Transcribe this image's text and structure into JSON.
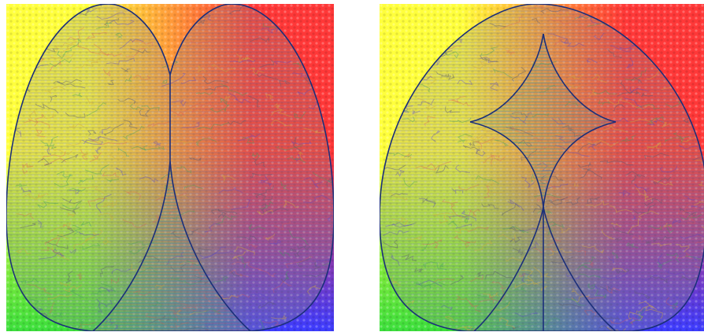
{
  "scene": {
    "description_free": true,
    "panels": [
      {
        "id": "left",
        "corner_colors": [
          "#ffff3c",
          "#ff3838",
          "#3cdf3c",
          "#3c3cff"
        ],
        "outline_color": "#1b2f7a",
        "fill_pattern": "noisy-lattice"
      },
      {
        "id": "right",
        "corner_colors": [
          "#ffff3c",
          "#ff3838",
          "#3cdf3c",
          "#3c3cff"
        ],
        "outline_color": "#1b2f7a",
        "fill_pattern": "noisy-lattice"
      }
    ]
  }
}
